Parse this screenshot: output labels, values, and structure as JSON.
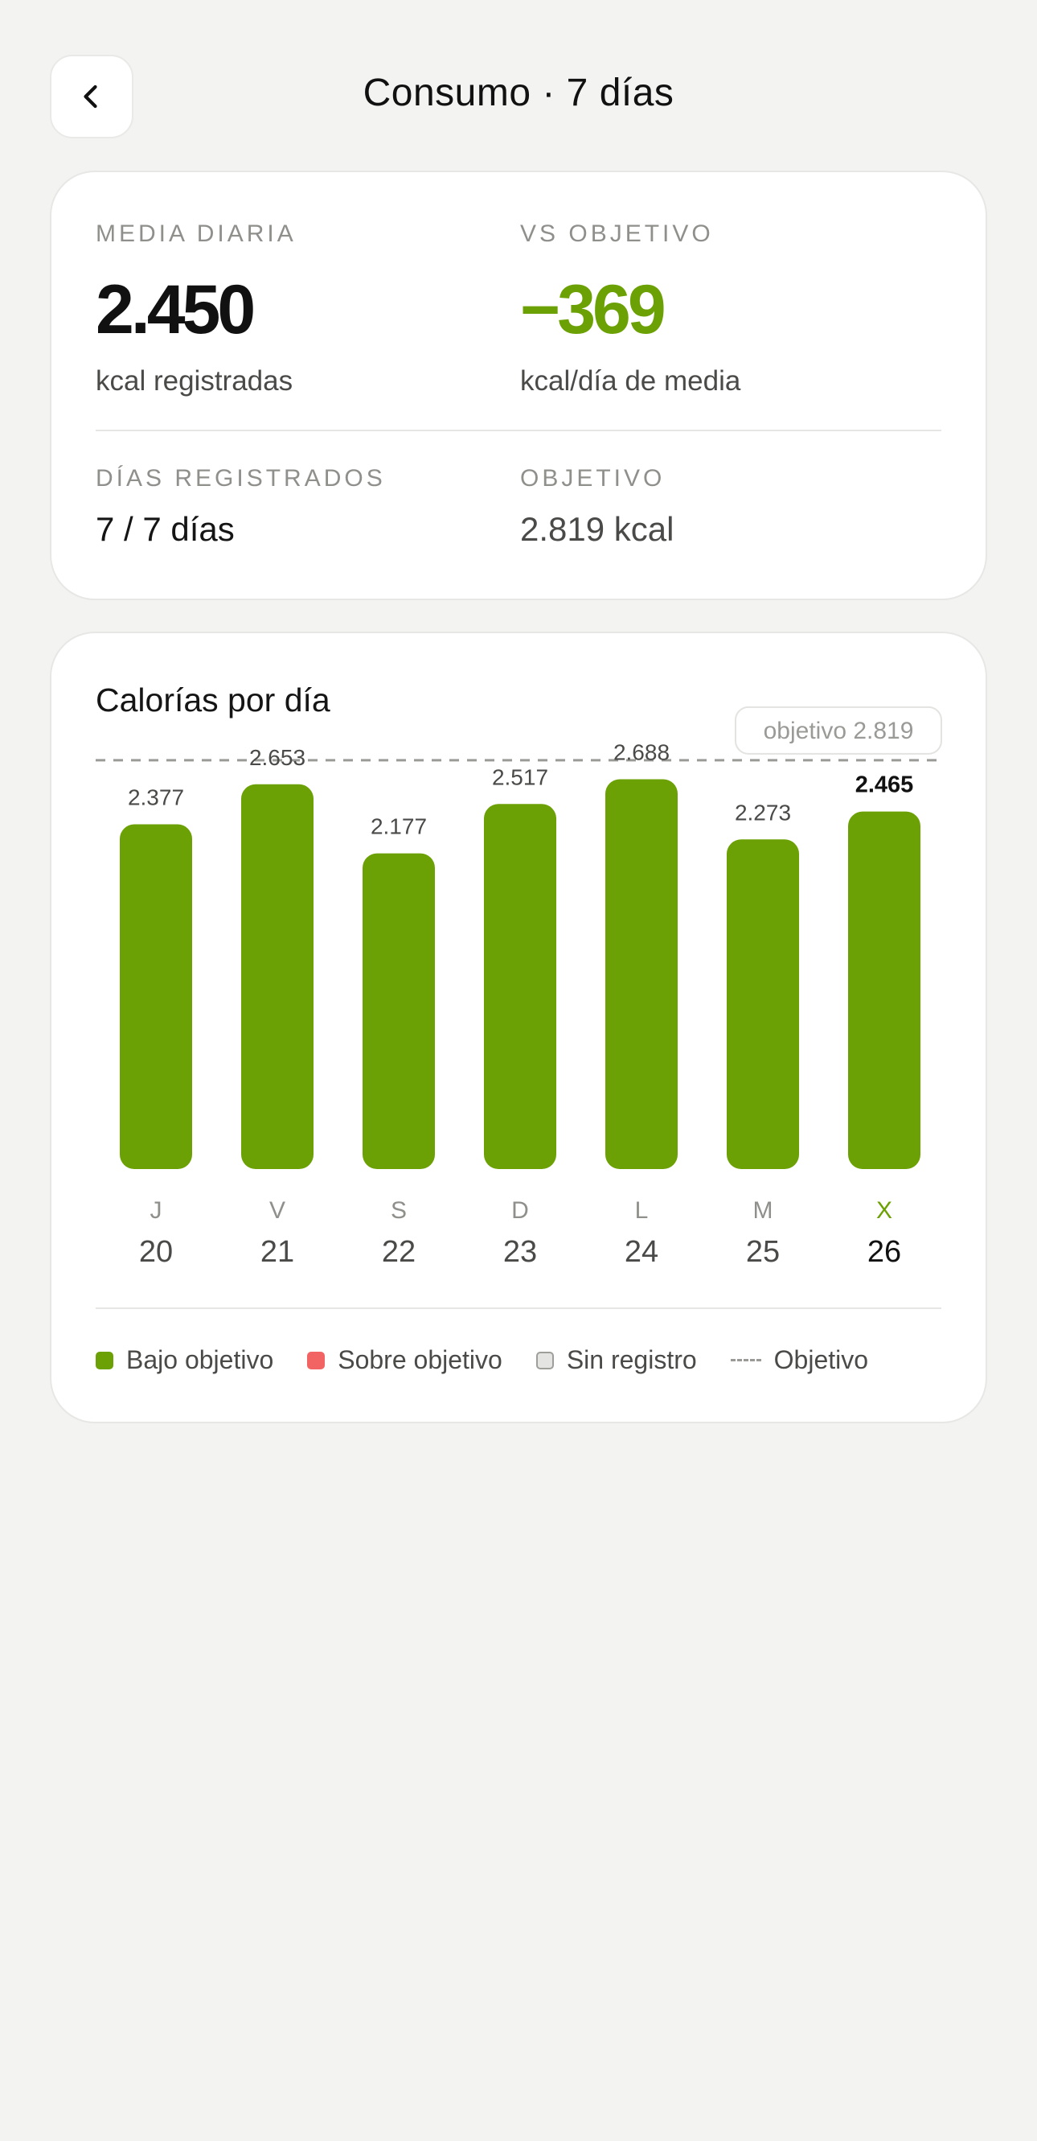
{
  "header": {
    "title": "Consumo · 7 días",
    "back_icon": "chevron-left-icon"
  },
  "summary": {
    "daily_avg_label": "MEDIA DIARIA",
    "daily_avg_value": "2.450",
    "daily_avg_unit": "kcal registradas",
    "vs_goal_label": "VS OBJETIVO",
    "vs_goal_value": "−369",
    "vs_goal_unit": "kcal/día de media",
    "days_logged_label": "DÍAS REGISTRADOS",
    "days_logged_value": "7 / 7 días",
    "goal_label": "OBJETIVO",
    "goal_value": "2.819 kcal"
  },
  "chart": {
    "title": "Calorías por día",
    "goal_tag": "objetivo 2.819"
  },
  "legend": {
    "under": "Bajo objetivo",
    "over": "Sobre objetivo",
    "none": "Sin registro",
    "goal": "Objetivo"
  },
  "colors": {
    "under": "#6ba104",
    "over": "#f26363",
    "none": "#e4e4e2",
    "goal_line": "#9a9a97",
    "accent_negative": "#6ba104"
  },
  "chart_data": {
    "type": "bar",
    "categories": [
      "J 20",
      "V 21",
      "S 22",
      "D 23",
      "L 24",
      "M 25",
      "X 26"
    ],
    "weekdays": [
      "J",
      "V",
      "S",
      "D",
      "L",
      "M",
      "X"
    ],
    "days": [
      "20",
      "21",
      "22",
      "23",
      "24",
      "25",
      "26"
    ],
    "values": [
      2377,
      2653,
      2177,
      2517,
      2688,
      2273,
      2465
    ],
    "value_labels": [
      "2.377",
      "2.653",
      "2.177",
      "2.517",
      "2.688",
      "2.273",
      "2.465"
    ],
    "goal": 2819,
    "highlight_index": 6,
    "title": "Calorías por día",
    "xlabel": "",
    "ylabel": "",
    "ylim": [
      0,
      2819
    ]
  }
}
